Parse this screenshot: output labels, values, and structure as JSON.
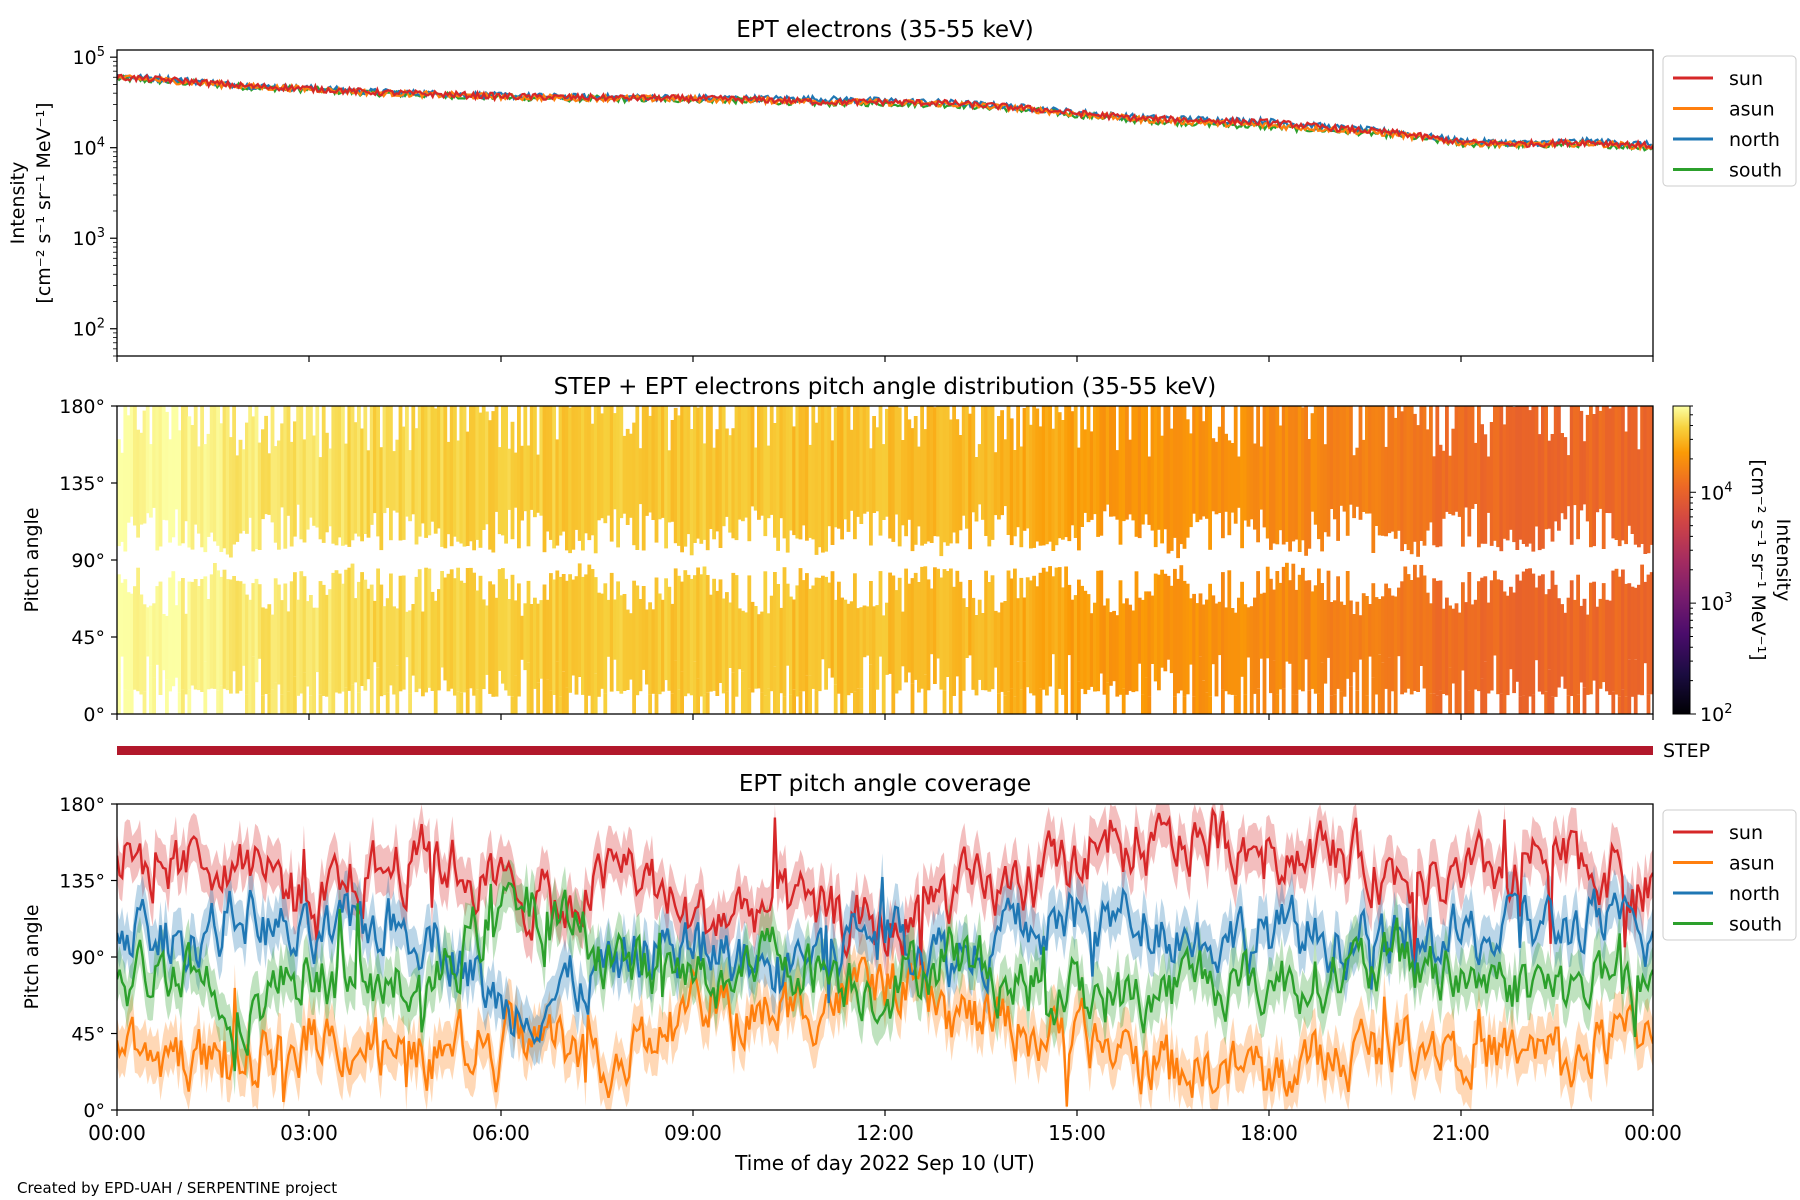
{
  "figure": {
    "credit": "Created by EPD-UAH / SERPENTINE project",
    "xlabel": "Time of day 2022 Sep 10 (UT)",
    "time_ticks": [
      "00:00",
      "03:00",
      "06:00",
      "09:00",
      "12:00",
      "15:00",
      "18:00",
      "21:00",
      "00:00"
    ],
    "colors": {
      "sun": "#d62728",
      "asun": "#ff7f0e",
      "north": "#1f77b4",
      "south": "#2ca02c",
      "step_bar": "#b2182b"
    }
  },
  "chart_data": [
    {
      "type": "line",
      "title": "EPT electrons (35-55 keV)",
      "ylabel_line1": "Intensity",
      "ylabel_line2": "[cm⁻² s⁻¹ sr⁻¹ MeV⁻¹]",
      "yscale": "log",
      "ylim": [
        50,
        120000
      ],
      "yticks": [
        {
          "value": 100000,
          "base": "10",
          "exp": "5"
        },
        {
          "value": 10000,
          "base": "10",
          "exp": "4"
        },
        {
          "value": 1000,
          "base": "10",
          "exp": "3"
        },
        {
          "value": 100,
          "base": "10",
          "exp": "2"
        }
      ],
      "x_hours": [
        0,
        1,
        2,
        3,
        4,
        5,
        6,
        7,
        8,
        9,
        10,
        11,
        12,
        13,
        14,
        15,
        16,
        17,
        18,
        19,
        20,
        21,
        22,
        23,
        24
      ],
      "legend_placement": "outside-right",
      "series": [
        {
          "name": "sun",
          "color": "#d62728",
          "values": [
            60000,
            55000,
            48000,
            45000,
            41000,
            39000,
            37000,
            36000,
            35500,
            35000,
            34000,
            32000,
            32000,
            31000,
            28000,
            24000,
            21000,
            20000,
            19000,
            16500,
            14500,
            11500,
            11000,
            11500,
            10500
          ]
        },
        {
          "name": "asun",
          "color": "#ff7f0e",
          "values": [
            59000,
            54000,
            47500,
            44500,
            40500,
            38500,
            36500,
            35500,
            35000,
            34500,
            33500,
            32500,
            31500,
            30500,
            27500,
            23500,
            20500,
            19000,
            17500,
            16000,
            14000,
            11300,
            10800,
            11200,
            10200
          ]
        },
        {
          "name": "north",
          "color": "#1f77b4",
          "values": [
            62000,
            56000,
            48500,
            45500,
            41500,
            39500,
            37500,
            36500,
            36000,
            35500,
            35000,
            34500,
            33000,
            31500,
            28500,
            24500,
            21500,
            20500,
            19500,
            16800,
            14800,
            11800,
            11200,
            11800,
            10800
          ]
        },
        {
          "name": "south",
          "color": "#2ca02c",
          "values": [
            58000,
            53000,
            47000,
            44000,
            40000,
            38000,
            36000,
            35000,
            34500,
            34000,
            33000,
            31000,
            31000,
            30000,
            27000,
            23000,
            20000,
            18500,
            17000,
            15500,
            13800,
            11000,
            10700,
            11000,
            10000
          ]
        }
      ]
    },
    {
      "type": "heatmap",
      "title": "STEP + EPT electrons pitch angle distribution (35-55 keV)",
      "ylabel": "Pitch angle",
      "ylim": [
        0,
        180
      ],
      "yticks": [
        "0°",
        "45°",
        "90°",
        "135°",
        "180°"
      ],
      "colorbar": {
        "scale": "log",
        "range": [
          100,
          60000
        ],
        "label_line1": "Intensity",
        "label_line2": "[cm⁻² s⁻¹ sr⁻¹ MeV⁻¹]",
        "ticks": [
          {
            "value": 10000,
            "base": "10",
            "exp": "4"
          },
          {
            "value": 1000,
            "base": "10",
            "exp": "3"
          },
          {
            "value": 100,
            "base": "10",
            "exp": "2"
          }
        ]
      },
      "intensity_by_hour": [
        60000,
        55000,
        48000,
        45000,
        41000,
        39000,
        37000,
        36000,
        35500,
        35000,
        34000,
        32000,
        32000,
        31000,
        28000,
        24000,
        21000,
        20000,
        19000,
        16500,
        14500,
        11500,
        11000,
        11500,
        10500
      ]
    },
    {
      "type": "bar",
      "label": "STEP",
      "coverage_hours": [
        0,
        24
      ]
    },
    {
      "type": "area",
      "title": "EPT pitch angle coverage",
      "ylabel": "Pitch angle",
      "ylim": [
        0,
        180
      ],
      "yticks": [
        "0°",
        "45°",
        "90°",
        "135°",
        "180°"
      ],
      "x_hours": [
        0,
        1,
        2,
        3,
        4,
        5,
        6,
        7,
        8,
        9,
        10,
        11,
        12,
        13,
        14,
        15,
        16,
        17,
        18,
        19,
        20,
        21,
        22,
        23,
        24
      ],
      "legend_placement": "outside-right",
      "series": [
        {
          "name": "sun",
          "color": "#d62728",
          "values": [
            150,
            140,
            155,
            120,
            140,
            150,
            130,
            120,
            145,
            110,
            120,
            115,
            105,
            125,
            130,
            145,
            150,
            160,
            155,
            150,
            140,
            130,
            150,
            145,
            130
          ]
        },
        {
          "name": "asun",
          "color": "#ff7f0e",
          "values": [
            40,
            35,
            25,
            45,
            40,
            30,
            45,
            40,
            30,
            60,
            55,
            65,
            75,
            55,
            50,
            40,
            30,
            25,
            20,
            30,
            40,
            45,
            30,
            35,
            50
          ]
        },
        {
          "name": "north",
          "color": "#1f77b4",
          "values": [
            110,
            100,
            115,
            95,
            110,
            105,
            60,
            70,
            90,
            100,
            85,
            95,
            110,
            90,
            105,
            110,
            115,
            100,
            105,
            100,
            95,
            100,
            105,
            110,
            100
          ]
        },
        {
          "name": "south",
          "color": "#2ca02c",
          "values": [
            70,
            90,
            60,
            85,
            70,
            75,
            120,
            110,
            85,
            75,
            95,
            85,
            70,
            95,
            75,
            70,
            65,
            80,
            75,
            80,
            85,
            80,
            75,
            70,
            80
          ]
        }
      ]
    }
  ]
}
